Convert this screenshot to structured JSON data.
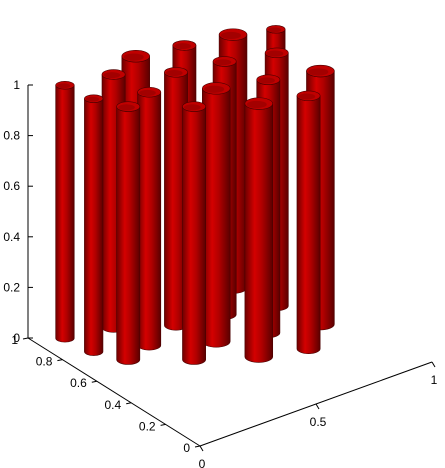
{
  "chart_data": {
    "type": "surface-3d",
    "title": "",
    "xlabel": "",
    "ylabel": "",
    "zlabel": "",
    "xlim": [
      0,
      1
    ],
    "ylim": [
      0,
      1
    ],
    "zlim": [
      0,
      1
    ],
    "grid": false,
    "surface_color": "#c00000",
    "x_ticks": [
      "0",
      "0.5",
      "1"
    ],
    "y_ticks": [
      "0",
      "0.2",
      "0.4",
      "0.6",
      "0.8",
      "1"
    ],
    "z_ticks": [
      "0",
      "0.2",
      "0.4",
      "0.6",
      "0.8",
      "1"
    ],
    "cylinders": [
      {
        "x": 0.1,
        "y": 0.92,
        "r": 0.04
      },
      {
        "x": 0.12,
        "y": 0.78,
        "r": 0.04
      },
      {
        "x": 0.18,
        "y": 0.66,
        "r": 0.05
      },
      {
        "x": 0.28,
        "y": 0.88,
        "r": 0.05
      },
      {
        "x": 0.3,
        "y": 0.7,
        "r": 0.05
      },
      {
        "x": 0.36,
        "y": 0.52,
        "r": 0.05
      },
      {
        "x": 0.42,
        "y": 0.94,
        "r": 0.06
      },
      {
        "x": 0.46,
        "y": 0.76,
        "r": 0.05
      },
      {
        "x": 0.5,
        "y": 0.58,
        "r": 0.06
      },
      {
        "x": 0.55,
        "y": 0.4,
        "r": 0.06
      },
      {
        "x": 0.6,
        "y": 0.9,
        "r": 0.05
      },
      {
        "x": 0.64,
        "y": 0.72,
        "r": 0.05
      },
      {
        "x": 0.68,
        "y": 0.52,
        "r": 0.05
      },
      {
        "x": 0.72,
        "y": 0.34,
        "r": 0.05
      },
      {
        "x": 0.78,
        "y": 0.86,
        "r": 0.06
      },
      {
        "x": 0.82,
        "y": 0.66,
        "r": 0.05
      },
      {
        "x": 0.86,
        "y": 0.46,
        "r": 0.06
      },
      {
        "x": 0.92,
        "y": 0.8,
        "r": 0.04
      }
    ]
  }
}
